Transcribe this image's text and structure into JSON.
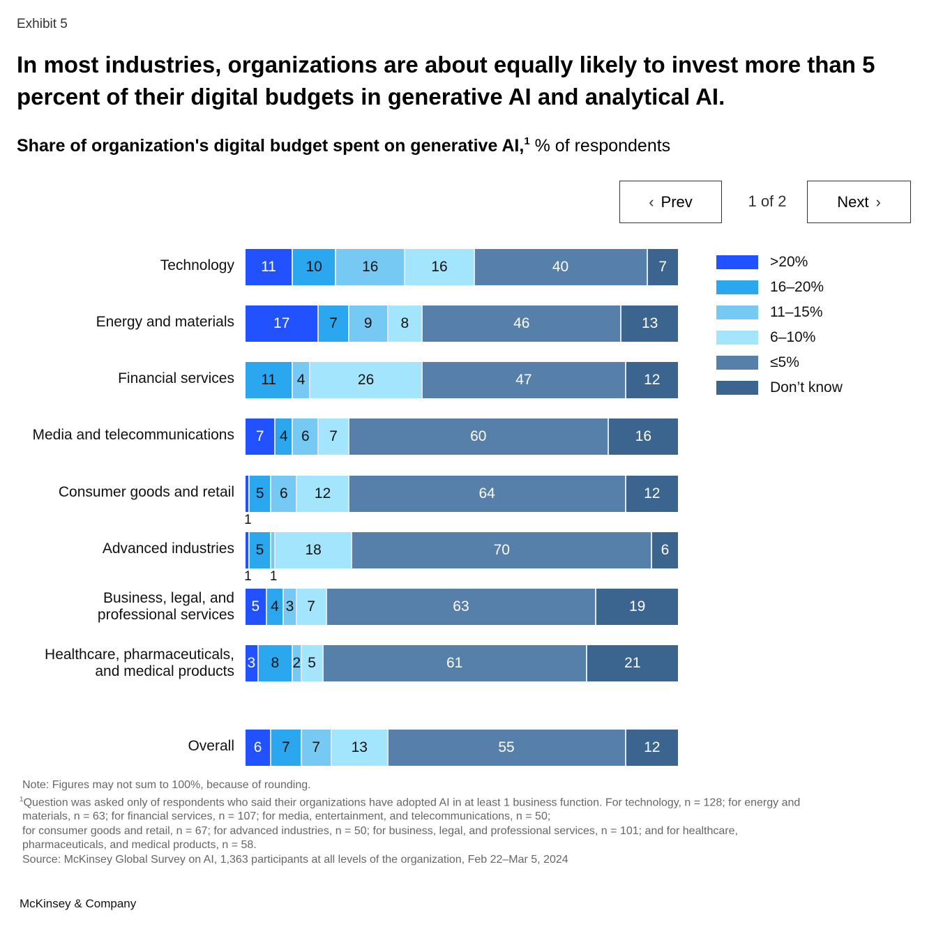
{
  "exhibit_label": "Exhibit 5",
  "headline": "In most industries, organizations are about equally likely to invest more than 5 percent of their digital budgets in generative AI and analytical AI.",
  "subtitle": {
    "bold": "Share of organization's digital budget spent on generative AI,",
    "footnote_marker": "1",
    "regular": " % of respondents"
  },
  "pager": {
    "prev_label": "Prev",
    "next_label": "Next",
    "indicator": "1 of 2",
    "prev_icon": "chevron-left-icon",
    "next_icon": "chevron-right-icon"
  },
  "chart_data": {
    "type": "bar",
    "orientation": "horizontal-stacked-100",
    "title": "Share of organization's digital budget spent on generative AI, % of respondents",
    "xlabel": "",
    "ylabel": "",
    "xlim": [
      0,
      100
    ],
    "grid": false,
    "legend_position": "right",
    "categories": [
      "Technology",
      "Energy and materials",
      "Financial services",
      "Media and telecommunications",
      "Consumer goods and retail",
      "Advanced industries",
      "Business, legal, and professional services",
      "Healthcare, pharmaceuticals, and medical products",
      "Overall"
    ],
    "series": [
      {
        "name": ">20%",
        "color": "#2251ff",
        "values": [
          11,
          17,
          0,
          7,
          1,
          1,
          5,
          3,
          6
        ]
      },
      {
        "name": "16–20%",
        "color": "#2ba7ef",
        "values": [
          10,
          7,
          11,
          4,
          5,
          5,
          4,
          8,
          7
        ]
      },
      {
        "name": "11–15%",
        "color": "#76c9f2",
        "values": [
          16,
          9,
          4,
          6,
          6,
          1,
          3,
          2,
          7
        ]
      },
      {
        "name": "6–10%",
        "color": "#a2e5fc",
        "values": [
          16,
          8,
          26,
          7,
          12,
          18,
          7,
          5,
          13
        ]
      },
      {
        "name": "≤5%",
        "color": "#567fa9",
        "values": [
          40,
          46,
          47,
          60,
          64,
          70,
          63,
          61,
          55
        ]
      },
      {
        "name": "Don't know",
        "color": "#3b658e",
        "values": [
          7,
          13,
          12,
          16,
          12,
          6,
          19,
          21,
          12
        ]
      }
    ],
    "label_display": [
      [
        "11",
        "10",
        "16",
        "16",
        "40",
        "7"
      ],
      [
        "17",
        "7",
        "9",
        "8",
        "46",
        "13"
      ],
      [
        "",
        "11",
        "4",
        "26",
        "47",
        "12"
      ],
      [
        "7",
        "4",
        "6",
        "7",
        "60",
        "16"
      ],
      [
        "",
        "5",
        "6",
        "12",
        "64",
        "12"
      ],
      [
        "",
        "5",
        "",
        "18",
        "70",
        "6"
      ],
      [
        "5",
        "4",
        "3",
        "7",
        "63",
        "19"
      ],
      [
        "3",
        "8",
        "2",
        "5",
        "61",
        "21"
      ],
      [
        "6",
        "7",
        "7",
        "13",
        "55",
        "12"
      ]
    ],
    "below_bar_labels": [
      {
        "category_index": 4,
        "series_index": 0,
        "text": "1"
      },
      {
        "category_index": 5,
        "series_index": 0,
        "text": "1"
      },
      {
        "category_index": 5,
        "series_index": 2,
        "text": "1"
      }
    ]
  },
  "legend_title_texts": [
    ">20%",
    "16–20%",
    "11–15%",
    "6–10%",
    "≤5%",
    "Don’t know"
  ],
  "notes": {
    "note": "Note: Figures may not sum to 100%, because of rounding.",
    "footnote_marker": "1",
    "footnote_lines": [
      "Question was asked only of respondents who said their organizations have adopted AI in at least 1 business function. For technology, n = 128; for energy and",
      "materials, n = 63; for financial services, n = 107; for media, entertainment, and telecommunications, n = 50;",
      "for consumer goods and retail, n = 67; for advanced industries, n = 50; for business, legal, and professional services, n = 101; and for healthcare,",
      "pharmaceuticals, and medical products, n = 58."
    ],
    "source": "Source: McKinsey Global Survey on AI, 1,363 participants at all levels of the organization, Feb 22–Mar 5, 2024"
  },
  "brand": "McKinsey & Company"
}
